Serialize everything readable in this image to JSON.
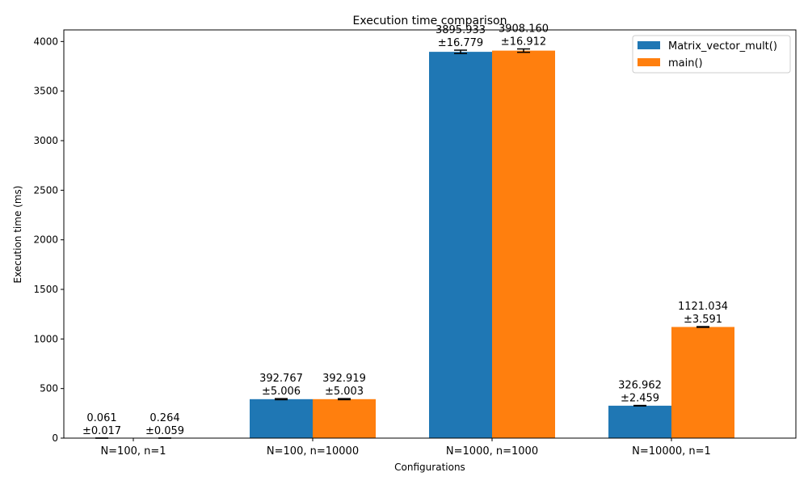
{
  "chart_data": {
    "type": "bar",
    "title": "Execution time comparison",
    "xlabel": "Configurations",
    "ylabel": "Execution time (ms)",
    "categories": [
      "N=100, n=1",
      "N=100, n=10000",
      "N=1000, n=1000",
      "N=10000, n=1"
    ],
    "ylim": [
      0,
      4117
    ],
    "yticks": [
      0,
      500,
      1000,
      1500,
      2000,
      2500,
      3000,
      3500,
      4000
    ],
    "legend_position": "top-right",
    "grid": false,
    "series": [
      {
        "name": "Matrix_vector_mult()",
        "color": "#1f77b4",
        "values": [
          0.061,
          392.767,
          3895.933,
          326.962
        ],
        "errors": [
          0.017,
          5.006,
          16.779,
          2.459
        ],
        "value_labels": [
          "0.061",
          "392.767",
          "3895.933",
          "326.962"
        ],
        "error_labels": [
          "±0.017",
          "±5.006",
          "±16.779",
          "±2.459"
        ]
      },
      {
        "name": "main()",
        "color": "#ff7f0e",
        "values": [
          0.264,
          392.919,
          3908.16,
          1121.034
        ],
        "errors": [
          0.059,
          5.003,
          16.912,
          3.591
        ],
        "value_labels": [
          "0.264",
          "392.919",
          "3908.160",
          "1121.034"
        ],
        "error_labels": [
          "±0.059",
          "±5.003",
          "±16.912",
          "±3.591"
        ]
      }
    ]
  }
}
